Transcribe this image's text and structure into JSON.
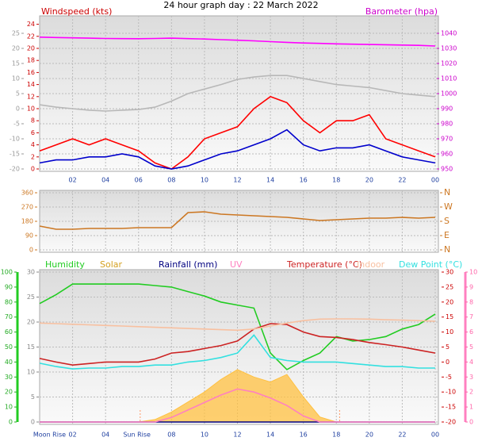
{
  "chart_data": [
    {
      "type": "line",
      "title": "24 hour graph day : 22 March 2022",
      "ylabel": "Windspeed (kts)",
      "y2label": "Barometer (hpa)",
      "x": [
        0,
        1,
        2,
        3,
        4,
        5,
        6,
        7,
        8,
        9,
        10,
        11,
        12,
        13,
        14,
        15,
        16,
        17,
        18,
        19,
        20,
        21,
        22,
        23,
        24
      ],
      "xlim": [
        0,
        24
      ],
      "xticks": [
        {
          "value": 2,
          "label": "02"
        },
        {
          "value": 4,
          "label": "04"
        },
        {
          "value": 6,
          "label": "06"
        },
        {
          "value": 8,
          "label": "08"
        },
        10,
        12,
        14,
        16,
        18,
        20,
        22,
        {
          "value": 24,
          "label": "00"
        }
      ],
      "ylim": [
        0,
        25
      ],
      "yticks": [
        0,
        2,
        4,
        6,
        8,
        10,
        12,
        14,
        16,
        18,
        20,
        22,
        24
      ],
      "y2lim": [
        950,
        1050
      ],
      "y2ticks": [
        950,
        960,
        970,
        980,
        990,
        1000,
        1010,
        1020,
        1030,
        1040
      ],
      "y3lim": [
        -20,
        30
      ],
      "y3ticks": [
        -20,
        -15,
        -10,
        -5,
        0,
        5,
        10,
        15,
        20,
        25
      ],
      "grid": true,
      "series": [
        {
          "color": "#b8b8b8",
          "axis": "y3",
          "values": [
            1.3,
            0.5,
            0,
            -0.5,
            -0.8,
            -0.5,
            -0.3,
            0.5,
            2.5,
            5,
            6.5,
            8,
            9.7,
            10.5,
            11,
            11,
            10,
            9,
            8,
            7.5,
            7,
            6,
            5,
            4.5,
            4
          ]
        },
        {
          "color": "#ff00ff",
          "axis": "y2",
          "values": [
            1037.5,
            1037.2,
            1037,
            1036.8,
            1036.6,
            1036.5,
            1036.4,
            1036.6,
            1036.8,
            1036.5,
            1036.2,
            1035.8,
            1035.4,
            1035,
            1034.5,
            1034,
            1033.6,
            1033.3,
            1033,
            1032.8,
            1032.6,
            1032.4,
            1032.2,
            1032,
            1031.6
          ]
        },
        {
          "color": "#ff0000",
          "axis": "y",
          "values": [
            3,
            4,
            5,
            4,
            5,
            4,
            3,
            1,
            0,
            2,
            5,
            6,
            7,
            10,
            12,
            11,
            8,
            6,
            8,
            8,
            9,
            5,
            4,
            3,
            2
          ]
        },
        {
          "color": "#0000cc",
          "axis": "y",
          "values": [
            1,
            1.5,
            1.5,
            2,
            2,
            2.5,
            2,
            0.5,
            0,
            0.5,
            1.5,
            2.5,
            3,
            4,
            5,
            6.5,
            4,
            3,
            3.5,
            3.5,
            4,
            3,
            2,
            1.5,
            1
          ]
        }
      ]
    },
    {
      "type": "line",
      "x": [
        0,
        1,
        2,
        3,
        4,
        5,
        6,
        7,
        8,
        9,
        10,
        11,
        12,
        13,
        14,
        15,
        16,
        17,
        18,
        19,
        20,
        21,
        22,
        23,
        24
      ],
      "xlim": [
        0,
        24
      ],
      "ylim": [
        0,
        360
      ],
      "yticks": [
        0,
        90,
        180,
        270,
        360
      ],
      "y2lim": [
        0,
        360
      ],
      "y2ticks": [
        {
          "value": 0,
          "label": "N"
        },
        {
          "value": 90,
          "label": "E"
        },
        {
          "value": 180,
          "label": "S"
        },
        {
          "value": 270,
          "label": "W"
        },
        {
          "value": 360,
          "label": "N"
        }
      ],
      "grid": true,
      "series": [
        {
          "color": "#cc7722",
          "axis": "y",
          "values": [
            150,
            130,
            130,
            135,
            135,
            135,
            140,
            140,
            140,
            235,
            240,
            225,
            220,
            215,
            210,
            205,
            195,
            185,
            190,
            195,
            200,
            200,
            205,
            200,
            205
          ]
        }
      ]
    },
    {
      "type": "line",
      "x": [
        0,
        1,
        2,
        3,
        4,
        5,
        6,
        7,
        8,
        9,
        10,
        11,
        12,
        13,
        14,
        15,
        16,
        17,
        18,
        19,
        20,
        21,
        22,
        23,
        24
      ],
      "xlim": [
        0,
        24
      ],
      "xticks": [
        {
          "value": 2,
          "label": "02"
        },
        {
          "value": 4,
          "label": "04"
        },
        {
          "value": 8,
          "label": "08"
        },
        10,
        12,
        14,
        16,
        18,
        20,
        22,
        {
          "value": 24,
          "label": "00"
        }
      ],
      "ylim": [
        0,
        100
      ],
      "yticks": [
        0,
        10,
        20,
        30,
        40,
        50,
        60,
        70,
        80,
        90,
        100
      ],
      "y2lim": [
        -20,
        30
      ],
      "y2ticks": [
        -20,
        -15,
        -10,
        -5,
        0,
        5,
        10,
        15,
        20,
        25,
        30
      ],
      "y3lim": [
        0,
        30
      ],
      "y3ticks": [
        0,
        5,
        10,
        15,
        20,
        25,
        30
      ],
      "y4lim": [
        0,
        10
      ],
      "y4ticks": [
        0,
        1,
        2,
        3,
        4,
        5,
        6,
        7,
        8,
        9,
        10
      ],
      "grid": true,
      "annotations": [
        {
          "text": "Moon Rise",
          "x": 0.6
        },
        {
          "text": "Sun Rise",
          "x": 5.9
        }
      ],
      "vlines": [
        6.1,
        18.2
      ],
      "series": [
        {
          "name": "Humidity",
          "color": "#22cc22",
          "axis": "y",
          "values": [
            79,
            85,
            92,
            92,
            92,
            92,
            92,
            91,
            90,
            87,
            84,
            80,
            78,
            76,
            46,
            35,
            41,
            46,
            57,
            54,
            55,
            57,
            62,
            65,
            72
          ]
        },
        {
          "name": "Solar",
          "color": "#ffc040",
          "axis": "y3",
          "area": true,
          "values": [
            0,
            0,
            0,
            0,
            0,
            0,
            0,
            0.5,
            2,
            4,
            6,
            8.5,
            10.5,
            9,
            8,
            9.5,
            5,
            1,
            0,
            0,
            0,
            0,
            0,
            0,
            0
          ]
        },
        {
          "name": "Rainfall (mm)",
          "color": "#000080",
          "axis": "y3",
          "values": [
            0,
            0,
            0,
            0,
            0,
            0,
            0,
            0,
            0,
            0,
            0,
            0,
            0,
            0,
            0,
            0,
            0,
            0,
            0,
            0,
            0,
            0,
            0,
            0,
            0
          ]
        },
        {
          "name": "UV",
          "color": "#ff80c0",
          "axis": "y4",
          "values": [
            0,
            0,
            0,
            0,
            0,
            0,
            0,
            0,
            0.3,
            0.8,
            1.3,
            1.8,
            2.2,
            2,
            1.6,
            1.1,
            0.4,
            0,
            0,
            0,
            0,
            0,
            0,
            0,
            0
          ]
        },
        {
          "name": "Temperature (°C)",
          "color": "#cc2222",
          "axis": "y2",
          "values": [
            1.2,
            0,
            -1,
            -0.5,
            0,
            0,
            0,
            1,
            3,
            3.5,
            4.5,
            5.5,
            7,
            11,
            12.8,
            12.5,
            10,
            8.5,
            8.2,
            7.5,
            6.5,
            5.8,
            5,
            4,
            3
          ]
        },
        {
          "name": "Indoor",
          "color": "#f8c0a0",
          "axis": "y2",
          "values": [
            13,
            12.8,
            12.6,
            12.4,
            12.2,
            12,
            11.8,
            11.6,
            11.4,
            11.2,
            11,
            10.8,
            10.6,
            11,
            12,
            13,
            13.8,
            14.3,
            14.4,
            14.4,
            14.3,
            14.1,
            14,
            13.8,
            13.6
          ]
        },
        {
          "name": "Dew Point (°C)",
          "color": "#33e0e0",
          "axis": "y2",
          "values": [
            -0.4,
            -1.5,
            -2.3,
            -2,
            -2,
            -1.5,
            -1.5,
            -1,
            -1,
            0,
            0.5,
            1.5,
            3,
            9,
            1.5,
            0.5,
            0,
            0,
            0,
            -0.5,
            -1,
            -1.5,
            -1.5,
            -2,
            -2
          ]
        }
      ]
    }
  ]
}
